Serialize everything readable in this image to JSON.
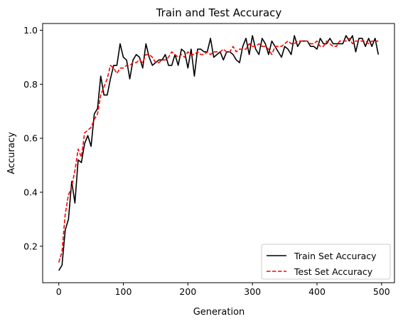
{
  "chart_data": {
    "type": "line",
    "title": "Train and Test Accuracy",
    "xlabel": "Generation",
    "ylabel": "Accuracy",
    "xlim": [
      -25,
      520
    ],
    "ylim": [
      0.065,
      1.025
    ],
    "xticks": [
      0,
      100,
      200,
      300,
      400,
      500
    ],
    "yticks": [
      0.2,
      0.4,
      0.6,
      0.8,
      1.0
    ],
    "xtick_labels": [
      "0",
      "100",
      "200",
      "300",
      "400",
      "500"
    ],
    "ytick_labels": [
      "0.2",
      "0.4",
      "0.6",
      "0.8",
      "1.0"
    ],
    "grid": false,
    "legend_position": "lower right",
    "series": [
      {
        "name": "Train Set Accuracy",
        "color": "#000000",
        "style": "solid",
        "x": [
          0,
          5,
          10,
          15,
          20,
          25,
          30,
          35,
          40,
          45,
          50,
          55,
          60,
          65,
          70,
          75,
          80,
          85,
          90,
          95,
          100,
          105,
          110,
          115,
          120,
          125,
          130,
          135,
          140,
          145,
          150,
          155,
          160,
          165,
          170,
          175,
          180,
          185,
          190,
          195,
          200,
          205,
          210,
          215,
          220,
          225,
          230,
          235,
          240,
          245,
          250,
          255,
          260,
          265,
          270,
          275,
          280,
          285,
          290,
          295,
          300,
          305,
          310,
          315,
          320,
          325,
          330,
          335,
          340,
          345,
          350,
          355,
          360,
          365,
          370,
          375,
          380,
          385,
          390,
          395,
          400,
          405,
          410,
          415,
          420,
          425,
          430,
          435,
          440,
          445,
          450,
          455,
          460,
          465,
          470,
          475,
          480,
          485,
          490,
          495
        ],
        "y": [
          0.11,
          0.13,
          0.26,
          0.3,
          0.44,
          0.36,
          0.52,
          0.51,
          0.58,
          0.61,
          0.57,
          0.69,
          0.71,
          0.83,
          0.76,
          0.76,
          0.82,
          0.87,
          0.87,
          0.95,
          0.9,
          0.89,
          0.82,
          0.89,
          0.91,
          0.9,
          0.86,
          0.95,
          0.9,
          0.87,
          0.88,
          0.89,
          0.89,
          0.91,
          0.87,
          0.87,
          0.91,
          0.87,
          0.93,
          0.92,
          0.86,
          0.93,
          0.83,
          0.93,
          0.93,
          0.92,
          0.92,
          0.97,
          0.9,
          0.91,
          0.92,
          0.89,
          0.92,
          0.92,
          0.91,
          0.89,
          0.88,
          0.94,
          0.97,
          0.91,
          0.98,
          0.93,
          0.91,
          0.97,
          0.95,
          0.91,
          0.96,
          0.94,
          0.92,
          0.9,
          0.94,
          0.93,
          0.91,
          0.98,
          0.94,
          0.96,
          0.96,
          0.96,
          0.94,
          0.94,
          0.93,
          0.97,
          0.95,
          0.95,
          0.97,
          0.95,
          0.95,
          0.95,
          0.95,
          0.98,
          0.96,
          0.98,
          0.92,
          0.97,
          0.97,
          0.94,
          0.97,
          0.94,
          0.97,
          0.91
        ]
      },
      {
        "name": "Test Set Accuracy",
        "color": "#ff0000",
        "style": "dashed",
        "x": [
          0,
          5,
          10,
          15,
          20,
          25,
          30,
          35,
          40,
          45,
          50,
          55,
          60,
          65,
          70,
          75,
          80,
          85,
          90,
          95,
          100,
          105,
          110,
          115,
          120,
          125,
          130,
          135,
          140,
          145,
          150,
          155,
          160,
          165,
          170,
          175,
          180,
          185,
          190,
          195,
          200,
          205,
          210,
          215,
          220,
          225,
          230,
          235,
          240,
          245,
          250,
          255,
          260,
          265,
          270,
          275,
          280,
          285,
          290,
          295,
          300,
          305,
          310,
          315,
          320,
          325,
          330,
          335,
          340,
          345,
          350,
          355,
          360,
          365,
          370,
          375,
          380,
          385,
          390,
          395,
          400,
          405,
          410,
          415,
          420,
          425,
          430,
          435,
          440,
          445,
          450,
          455,
          460,
          465,
          470,
          475,
          480,
          485,
          490,
          495
        ],
        "y": [
          0.14,
          0.18,
          0.32,
          0.39,
          0.42,
          0.48,
          0.56,
          0.53,
          0.62,
          0.63,
          0.64,
          0.67,
          0.69,
          0.76,
          0.79,
          0.82,
          0.87,
          0.86,
          0.84,
          0.86,
          0.86,
          0.87,
          0.87,
          0.88,
          0.88,
          0.89,
          0.88,
          0.91,
          0.91,
          0.9,
          0.88,
          0.88,
          0.89,
          0.89,
          0.9,
          0.92,
          0.91,
          0.9,
          0.91,
          0.9,
          0.92,
          0.91,
          0.91,
          0.92,
          0.91,
          0.91,
          0.92,
          0.91,
          0.92,
          0.92,
          0.92,
          0.93,
          0.92,
          0.92,
          0.94,
          0.92,
          0.93,
          0.93,
          0.93,
          0.95,
          0.94,
          0.94,
          0.95,
          0.94,
          0.94,
          0.93,
          0.91,
          0.94,
          0.94,
          0.94,
          0.95,
          0.96,
          0.95,
          0.95,
          0.96,
          0.96,
          0.96,
          0.96,
          0.95,
          0.95,
          0.96,
          0.94,
          0.94,
          0.96,
          0.95,
          0.94,
          0.94,
          0.96,
          0.96,
          0.96,
          0.97,
          0.95,
          0.96,
          0.96,
          0.96,
          0.96,
          0.95,
          0.96,
          0.96,
          0.96
        ]
      }
    ]
  }
}
